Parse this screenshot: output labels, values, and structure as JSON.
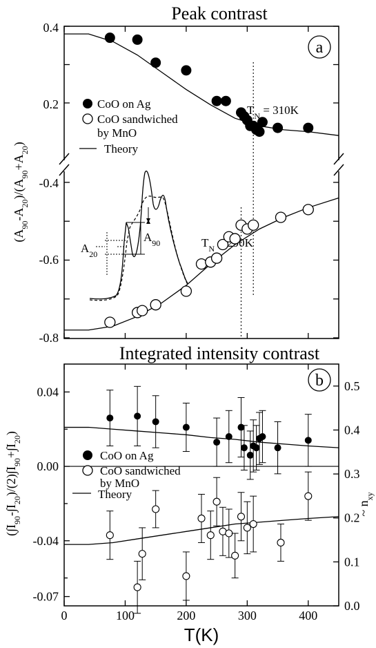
{
  "chart_data": [
    {
      "panel": "a",
      "panel_label": "a",
      "type": "scatter",
      "title": "Peak contrast",
      "ylabel": "(A90-A20)/(A90+A20)",
      "ylabel_parts": [
        "(A",
        "90",
        "-A",
        "20",
        ")/(A",
        "90",
        "+A",
        "20",
        ")"
      ],
      "x_range": [
        0,
        450
      ],
      "y_upper_range": [
        0.12,
        0.4
      ],
      "y_lower_range": [
        -0.8,
        -0.38
      ],
      "y_ticks_upper": [
        "0.4",
        "0.2"
      ],
      "y_ticks_lower": [
        "-0.4",
        "-0.6",
        "-0.8"
      ],
      "grid": false,
      "legend_position": "middle-left",
      "series": [
        {
          "name": "CoO on Ag",
          "marker": "filled-circle",
          "x": [
            75,
            120,
            150,
            200,
            250,
            265,
            290,
            295,
            300,
            305,
            310,
            315,
            320,
            325,
            350,
            400
          ],
          "y": [
            0.37,
            0.365,
            0.305,
            0.285,
            0.205,
            0.205,
            0.175,
            0.165,
            0.155,
            0.14,
            0.14,
            0.13,
            0.125,
            0.15,
            0.135,
            0.135
          ]
        },
        {
          "name": "CoO sandwiched by MnO",
          "name_lines": [
            "CoO sandwiched",
            "by MnO"
          ],
          "marker": "open-circle",
          "x": [
            75,
            120,
            128,
            150,
            200,
            225,
            240,
            250,
            260,
            270,
            280,
            290,
            300,
            310,
            355,
            400
          ],
          "y": [
            -0.76,
            -0.735,
            -0.73,
            -0.715,
            -0.68,
            -0.61,
            -0.605,
            -0.595,
            -0.56,
            -0.54,
            -0.545,
            -0.51,
            -0.52,
            -0.51,
            -0.49,
            -0.47
          ]
        },
        {
          "name": "Theory",
          "marker": "line",
          "x": [
            0,
            40,
            80,
            120,
            160,
            200,
            240,
            280,
            320,
            360,
            400,
            450
          ],
          "y_upper": [
            0.38,
            0.38,
            0.36,
            0.325,
            0.28,
            0.235,
            0.195,
            0.16,
            0.14,
            0.13,
            0.125,
            0.115
          ],
          "y_lower": [
            -0.78,
            -0.78,
            -0.77,
            -0.745,
            -0.71,
            -0.665,
            -0.61,
            -0.56,
            -0.52,
            -0.49,
            -0.465,
            -0.44
          ]
        }
      ],
      "annotations": [
        {
          "text_main": "T",
          "text_sub": "N",
          "text_rest": " = 310K",
          "x": 310
        },
        {
          "text_main": "T",
          "text_sub": "N",
          "text_rest": " = 290K",
          "x": 290
        }
      ],
      "inset": {
        "labels": [
          {
            "main": "A",
            "sub": "90"
          },
          {
            "main": "A",
            "sub": "20"
          }
        ]
      }
    },
    {
      "panel": "b",
      "panel_label": "b",
      "type": "scatter",
      "title": "Integrated intensity contrast",
      "xlabel": "T(K)",
      "ylabel_left_parts": [
        "(∫I",
        "90",
        "-∫I",
        "20",
        ")/(2)∫I",
        "90",
        "+∫I",
        "20",
        ")"
      ],
      "ylabel_right_parts": [
        "~ n",
        "xy"
      ],
      "x_range": [
        0,
        450
      ],
      "x_ticks": [
        "0",
        "100",
        "200",
        "300",
        "400"
      ],
      "y_left_range": [
        -0.075,
        0.055
      ],
      "y_left_ticks": [
        "0.04",
        "0.00",
        "-0.04",
        "-0.07"
      ],
      "y_left_tick_values": [
        0.04,
        0.0,
        -0.04,
        -0.07
      ],
      "y_right_range": [
        0.0,
        0.55
      ],
      "y_right_ticks": [
        "0.5",
        "0.4",
        "0.3",
        "0.2",
        "0.1",
        "0.0"
      ],
      "y_right_tick_values": [
        0.5,
        0.4,
        0.3,
        0.2,
        0.1,
        0.0
      ],
      "grid": false,
      "legend_position": "middle-left",
      "series": [
        {
          "name": "CoO on Ag",
          "marker": "filled-circle",
          "x": [
            75,
            120,
            150,
            200,
            250,
            270,
            290,
            295,
            305,
            310,
            315,
            320,
            325,
            350,
            400
          ],
          "y": [
            0.026,
            0.027,
            0.024,
            0.021,
            0.013,
            0.016,
            0.021,
            0.01,
            0.006,
            0.011,
            0.01,
            0.015,
            0.016,
            0.01,
            0.014
          ],
          "err": [
            0.015,
            0.016,
            0.014,
            0.013,
            0.013,
            0.014,
            0.016,
            0.012,
            0.013,
            0.014,
            0.012,
            0.014,
            0.014,
            0.014,
            0.014
          ]
        },
        {
          "name": "CoO sandwiched by MnO",
          "name_lines": [
            "CoO sandwiched",
            "by MnO"
          ],
          "marker": "open-circle",
          "x": [
            75,
            120,
            128,
            150,
            200,
            225,
            240,
            250,
            260,
            270,
            280,
            290,
            300,
            310,
            355,
            400
          ],
          "y": [
            -0.037,
            -0.065,
            -0.047,
            -0.023,
            -0.059,
            -0.028,
            -0.037,
            -0.019,
            -0.035,
            -0.036,
            -0.048,
            -0.027,
            -0.033,
            -0.031,
            -0.041,
            -0.016
          ],
          "err": [
            0.013,
            0.014,
            0.014,
            0.01,
            0.013,
            0.013,
            0.013,
            0.013,
            0.013,
            0.013,
            0.012,
            0.013,
            0.014,
            0.015,
            0.01,
            0.013
          ]
        },
        {
          "name": "Theory",
          "marker": "line",
          "x": [
            0,
            40,
            80,
            120,
            160,
            200,
            240,
            280,
            320,
            360,
            400,
            450
          ],
          "y_upper": [
            0.021,
            0.021,
            0.02,
            0.019,
            0.018,
            0.017,
            0.0155,
            0.0145,
            0.013,
            0.012,
            0.011,
            0.01
          ],
          "y_lower": [
            -0.042,
            -0.042,
            -0.041,
            -0.039,
            -0.037,
            -0.035,
            -0.033,
            -0.031,
            -0.03,
            -0.029,
            -0.028,
            -0.027
          ]
        }
      ]
    }
  ]
}
